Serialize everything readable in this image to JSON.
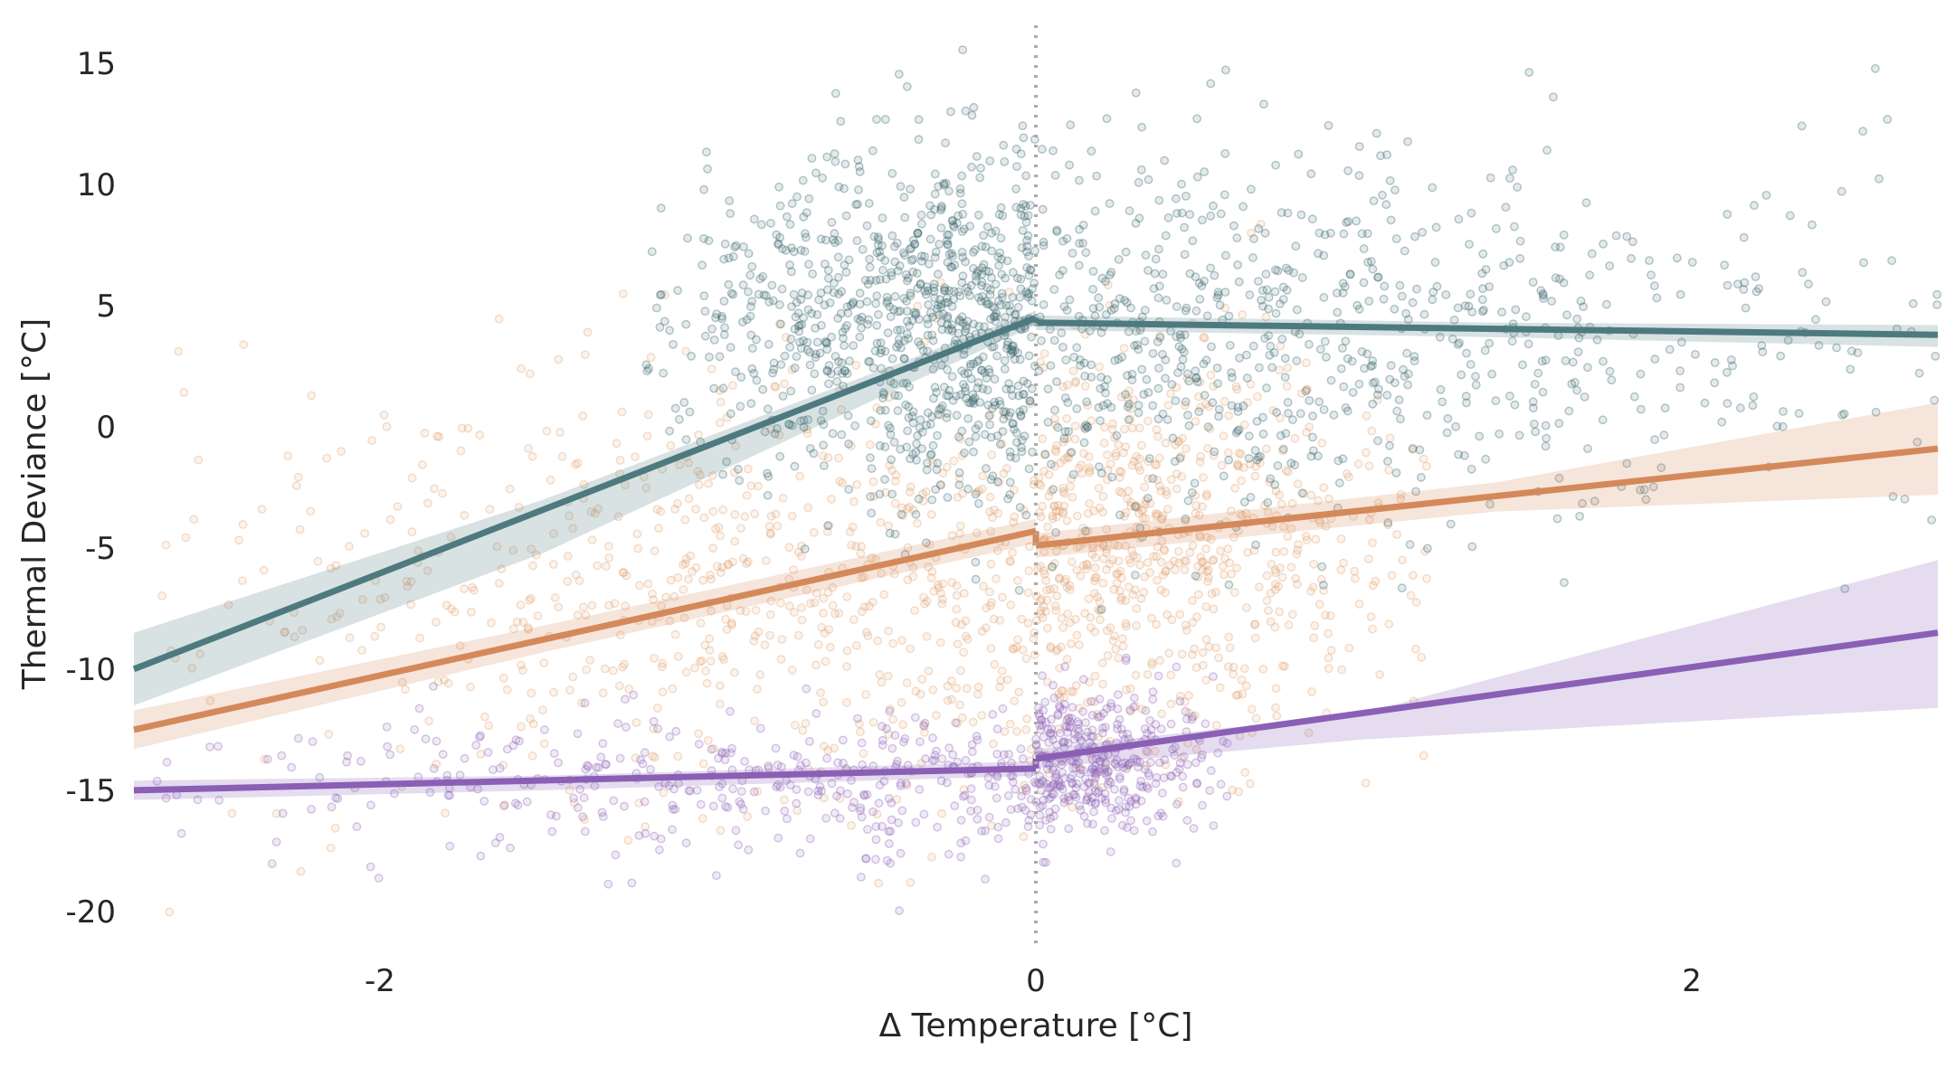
{
  "chart_data": {
    "type": "scatter",
    "title": "",
    "xlabel": "Δ  Temperature [°C]",
    "ylabel": "Thermal Deviance [°C]",
    "xlim": [
      -2.75,
      2.75
    ],
    "ylim": [
      -21.5,
      16.5
    ],
    "x_ticks": [
      -2,
      0,
      2
    ],
    "x_tick_labels": [
      "-2",
      "0",
      "2"
    ],
    "y_ticks": [
      15,
      10,
      5,
      0,
      -5,
      -10,
      -15,
      -20
    ],
    "y_tick_labels": [
      "15",
      "10",
      "5",
      "0",
      "-5",
      "-10",
      "-15",
      "-20"
    ],
    "grid": false,
    "legend": "none",
    "reference_line": {
      "x": 0,
      "style": "dotted",
      "color": "#aaaaaa"
    },
    "series": [
      {
        "color": "#4d7a7f",
        "point_color": "#2e5f63",
        "fit_lines": [
          {
            "x": [
              -2.75,
              0
            ],
            "y": [
              -10.0,
              4.5
            ]
          },
          {
            "x": [
              0,
              2.75
            ],
            "y": [
              4.3,
              3.8
            ]
          }
        ],
        "band": [
          {
            "x": [
              -2.75,
              -1.5,
              0
            ],
            "lower": [
              -11.5,
              -5.2,
              4.2
            ],
            "upper": [
              -8.5,
              -3.0,
              4.8
            ]
          },
          {
            "x": [
              0,
              1.4,
              2.75
            ],
            "lower": [
              4.0,
              3.7,
              3.3
            ],
            "upper": [
              4.6,
              4.3,
              4.2
            ]
          }
        ],
        "cloud": {
          "left": {
            "x_range": [
              -1.2,
              0
            ],
            "y_mean": 4,
            "y_sd": 3.5
          },
          "right": {
            "x_range": [
              0,
              2.75
            ],
            "y_mean": 3.5,
            "y_sd": 4
          }
        }
      },
      {
        "color": "#d4895a",
        "point_color": "#e0a070",
        "fit_lines": [
          {
            "x": [
              -2.75,
              0
            ],
            "y": [
              -12.5,
              -4.3
            ]
          },
          {
            "x": [
              0,
              2.75
            ],
            "y": [
              -4.9,
              -0.9
            ]
          }
        ],
        "band": [
          {
            "x": [
              -2.75,
              -1.5,
              0
            ],
            "lower": [
              -13.3,
              -9.3,
              -4.8
            ],
            "upper": [
              -11.7,
              -8.2,
              -3.8
            ]
          },
          {
            "x": [
              0,
              1.4,
              2.75
            ],
            "lower": [
              -5.4,
              -3.5,
              -2.8
            ],
            "upper": [
              -4.4,
              -2.3,
              1.0
            ]
          }
        ],
        "cloud": {
          "left": {
            "x_range": [
              -2.75,
              0
            ],
            "y_mean": -7,
            "y_sd": 4.5
          },
          "right": {
            "x_range": [
              0,
              1.2
            ],
            "y_mean": -5,
            "y_sd": 4
          }
        }
      },
      {
        "color": "#8a5fb5",
        "point_color": "#8a5fb5",
        "fit_lines": [
          {
            "x": [
              -2.75,
              0
            ],
            "y": [
              -15.0,
              -14.1
            ]
          },
          {
            "x": [
              0,
              2.75
            ],
            "y": [
              -13.7,
              -8.5
            ]
          }
        ],
        "band": [
          {
            "x": [
              -2.75,
              -1.5,
              0
            ],
            "lower": [
              -15.4,
              -15.0,
              -14.4
            ],
            "upper": [
              -14.6,
              -14.4,
              -13.8
            ]
          },
          {
            "x": [
              0,
              1.0,
              2.75
            ],
            "lower": [
              -14.1,
              -12.9,
              -11.6
            ],
            "upper": [
              -13.3,
              -11.8,
              -5.5
            ]
          }
        ],
        "cloud": {
          "left": {
            "x_range": [
              -2.75,
              0
            ],
            "y_mean": -15,
            "y_sd": 1.5
          },
          "right": {
            "x_range": [
              0,
              0.6
            ],
            "y_mean": -14,
            "y_sd": 1.5
          }
        }
      }
    ]
  }
}
